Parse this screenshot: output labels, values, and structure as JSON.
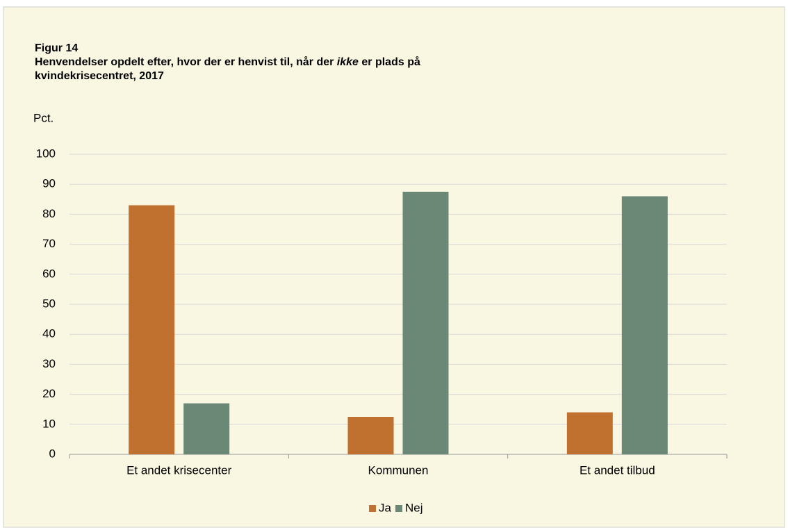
{
  "chart_data": {
    "type": "bar",
    "figure_label": "Figur 14",
    "title_parts": [
      "Henvendelser opdelt efter, hvor der er henvist til, når der ",
      "ikke",
      " er plads på",
      "kvindekrisecentret, 2017"
    ],
    "y_label": "Pct.",
    "categories": [
      "Et andet krisecenter",
      "Kommunen",
      "Et andet tilbud"
    ],
    "series": [
      {
        "name": "Ja",
        "color": "#c0702f",
        "values": [
          83,
          12.5,
          14
        ]
      },
      {
        "name": "Nej",
        "color": "#6b8877",
        "values": [
          17,
          87.5,
          86
        ]
      }
    ],
    "ylim": [
      0,
      100
    ],
    "yticks": [
      0,
      10,
      20,
      30,
      40,
      50,
      60,
      70,
      80,
      90,
      100
    ],
    "grid": true,
    "legend": "bottom"
  }
}
